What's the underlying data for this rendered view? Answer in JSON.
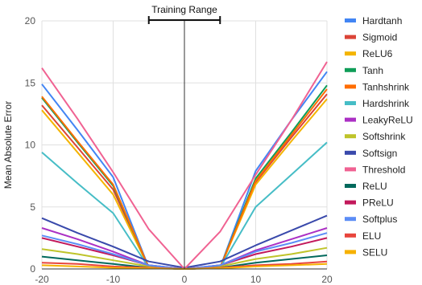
{
  "chart_data": {
    "type": "line",
    "title": "",
    "xlabel": "",
    "ylabel": "Mean Absolute Error",
    "xlim": [
      -20,
      20
    ],
    "ylim": [
      0,
      20
    ],
    "x_ticks": [
      "-20",
      "-10",
      "0",
      "10",
      "20"
    ],
    "y_ticks": [
      "0",
      "5",
      "10",
      "15",
      "20"
    ],
    "grid": true,
    "legend_position": "right",
    "annotation": {
      "label": "Training Range",
      "x_start": -5,
      "x_end": 5
    },
    "x": [
      -20,
      -15,
      -10,
      -5,
      0,
      5,
      10,
      15,
      20
    ],
    "series": [
      {
        "name": "Hardtanh",
        "color": "#4285F4",
        "values": [
          14.9,
          11.2,
          7.4,
          0.1,
          0.0,
          0.1,
          7.9,
          12.0,
          15.9
        ]
      },
      {
        "name": "Sigmoid",
        "color": "#DB4437",
        "values": [
          13.2,
          9.8,
          6.4,
          0.1,
          0.0,
          0.1,
          7.0,
          10.6,
          14.1
        ]
      },
      {
        "name": "ReLU6",
        "color": "#F4B400",
        "values": [
          12.8,
          9.4,
          6.0,
          0.1,
          0.0,
          0.1,
          6.8,
          10.3,
          13.7
        ]
      },
      {
        "name": "Tanh",
        "color": "#0F9D58",
        "values": [
          13.8,
          10.2,
          6.7,
          0.1,
          0.0,
          0.1,
          7.3,
          11.0,
          14.8
        ]
      },
      {
        "name": "Tanhshrink",
        "color": "#FF6D00",
        "values": [
          13.9,
          10.3,
          6.8,
          0.1,
          0.0,
          0.1,
          7.1,
          10.8,
          14.5
        ]
      },
      {
        "name": "Hardshrink",
        "color": "#46BDC6",
        "values": [
          9.4,
          6.9,
          4.5,
          0.1,
          0.0,
          0.1,
          5.0,
          7.6,
          10.2
        ]
      },
      {
        "name": "LeakyReLU",
        "color": "#AB30C4",
        "values": [
          3.3,
          2.4,
          1.4,
          0.3,
          0.0,
          0.3,
          1.5,
          2.4,
          3.3
        ]
      },
      {
        "name": "Softshrink",
        "color": "#BFC42A",
        "values": [
          1.6,
          1.2,
          0.7,
          0.2,
          0.0,
          0.2,
          0.8,
          1.2,
          1.7
        ]
      },
      {
        "name": "Softsign",
        "color": "#3949AB",
        "values": [
          4.1,
          2.9,
          1.8,
          0.6,
          0.1,
          0.6,
          1.9,
          3.1,
          4.3
        ]
      },
      {
        "name": "Threshold",
        "color": "#F06292",
        "values": [
          16.2,
          12.1,
          7.8,
          3.2,
          0.0,
          3.0,
          7.6,
          12.0,
          16.7
        ]
      },
      {
        "name": "ReLU",
        "color": "#00695C",
        "values": [
          1.0,
          0.7,
          0.4,
          0.1,
          0.0,
          0.1,
          0.5,
          0.8,
          1.1
        ]
      },
      {
        "name": "PReLU",
        "color": "#C2185B",
        "values": [
          2.5,
          1.8,
          1.1,
          0.3,
          0.0,
          0.3,
          1.2,
          1.8,
          2.5
        ]
      },
      {
        "name": "Softplus",
        "color": "#5C8DF6",
        "values": [
          2.7,
          2.0,
          1.2,
          0.3,
          0.0,
          0.3,
          1.4,
          2.1,
          2.9
        ]
      },
      {
        "name": "ELU",
        "color": "#E8453C",
        "values": [
          0.5,
          0.4,
          0.2,
          0.1,
          0.0,
          0.1,
          0.3,
          0.4,
          0.6
        ]
      },
      {
        "name": "SELU",
        "color": "#F6B100",
        "values": [
          0.3,
          0.2,
          0.1,
          0.05,
          0.0,
          0.05,
          0.2,
          0.3,
          0.4
        ]
      }
    ]
  }
}
